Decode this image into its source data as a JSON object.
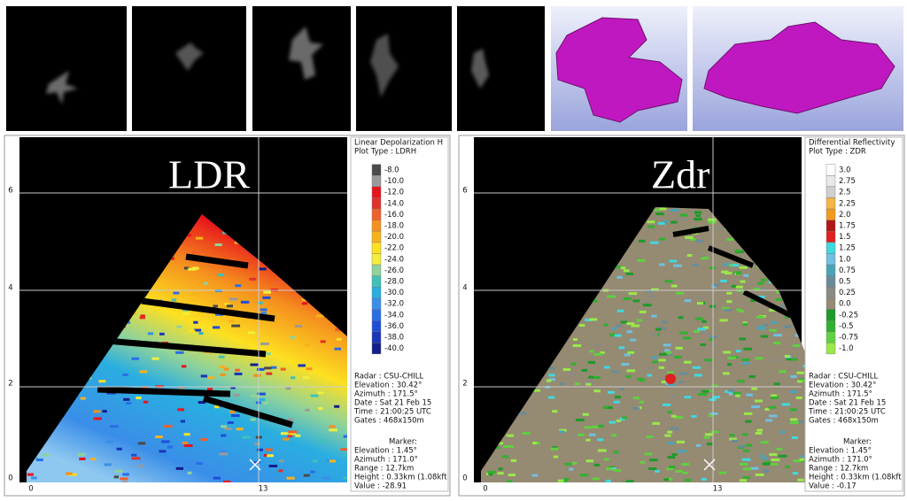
{
  "panels": [
    {
      "label": "LDR",
      "legend_title": "Linear Depolarization H",
      "plot_type": "Plot Type : LDRH",
      "colorbar": [
        {
          "label": "-8.0",
          "color": "#4a4a4a"
        },
        {
          "label": "-10.0",
          "color": "#9a9a9a"
        },
        {
          "label": "-12.0",
          "color": "#e8141c"
        },
        {
          "label": "-14.0",
          "color": "#e0312a"
        },
        {
          "label": "-16.0",
          "color": "#f0602a"
        },
        {
          "label": "-18.0",
          "color": "#f5901e"
        },
        {
          "label": "-20.0",
          "color": "#f8b21c"
        },
        {
          "label": "-22.0",
          "color": "#fde020"
        },
        {
          "label": "-24.0",
          "color": "#f2ee3a"
        },
        {
          "label": "-26.0",
          "color": "#8fd39a"
        },
        {
          "label": "-28.0",
          "color": "#40c0b8"
        },
        {
          "label": "-30.0",
          "color": "#2aaee0"
        },
        {
          "label": "-32.0",
          "color": "#3a8ee8"
        },
        {
          "label": "-34.0",
          "color": "#2a6ee6"
        },
        {
          "label": "-36.0",
          "color": "#1e4ed8"
        },
        {
          "label": "-38.0",
          "color": "#1a36b8"
        },
        {
          "label": "-40.0",
          "color": "#121e8a"
        }
      ],
      "info": [
        "Radar : CSU-CHILL",
        "Elevation : 30.42°",
        "Azimuth : 171.5°",
        "Date : Sat 21 Feb 15",
        "Time : 21:00:25 UTC",
        "Gates : 468x150m"
      ],
      "marker": [
        "Marker:",
        "Elevation : 1.45°",
        "Azimuth : 171.0°",
        "Range : 12.7km",
        "Height : 0.33km (1.08kft",
        "Value : -28.91"
      ],
      "y_ticks": [
        "0",
        "2",
        "4",
        "6"
      ],
      "x_ticks": [
        "0",
        "13"
      ]
    },
    {
      "label": "Zdr",
      "legend_title": "Differential Reflectivity",
      "plot_type": "Plot Type : ZDR",
      "colorbar": [
        {
          "label": "3.0",
          "color": "#ffffff"
        },
        {
          "label": "2.75",
          "color": "#e8e8e8"
        },
        {
          "label": "2.5",
          "color": "#d0d0d0"
        },
        {
          "label": "2.25",
          "color": "#f6b444"
        },
        {
          "label": "2.0",
          "color": "#f29a1c"
        },
        {
          "label": "1.75",
          "color": "#b01818"
        },
        {
          "label": "1.5",
          "color": "#e02020"
        },
        {
          "label": "1.25",
          "color": "#40d8e0"
        },
        {
          "label": "1.0",
          "color": "#70c0e0"
        },
        {
          "label": "0.75",
          "color": "#4aa4b8"
        },
        {
          "label": "0.5",
          "color": "#6a8c98"
        },
        {
          "label": "0.25",
          "color": "#8a8a84"
        },
        {
          "label": "0.0",
          "color": "#958a72"
        },
        {
          "label": "-0.25",
          "color": "#1e9a2a"
        },
        {
          "label": "-0.5",
          "color": "#30b030"
        },
        {
          "label": "-0.75",
          "color": "#60d040"
        },
        {
          "label": "-1.0",
          "color": "#9ae84a"
        }
      ],
      "info": [
        "Radar : CSU-CHILL",
        "Elevation : 30.42°",
        "Azimuth : 171.5°",
        "Date : Sat 21 Feb 15",
        "Time : 21:00:25 UTC",
        "Gates : 468x150m"
      ],
      "marker": [
        "Marker:",
        "Elevation : 1.45°",
        "Azimuth : 171.0°",
        "Range : 12.7km",
        "Height : 0.33km (1.08kft",
        "Value : -0.17"
      ],
      "y_ticks": [
        "0",
        "2",
        "4",
        "6"
      ],
      "x_ticks": [
        "0",
        "13"
      ]
    }
  ]
}
